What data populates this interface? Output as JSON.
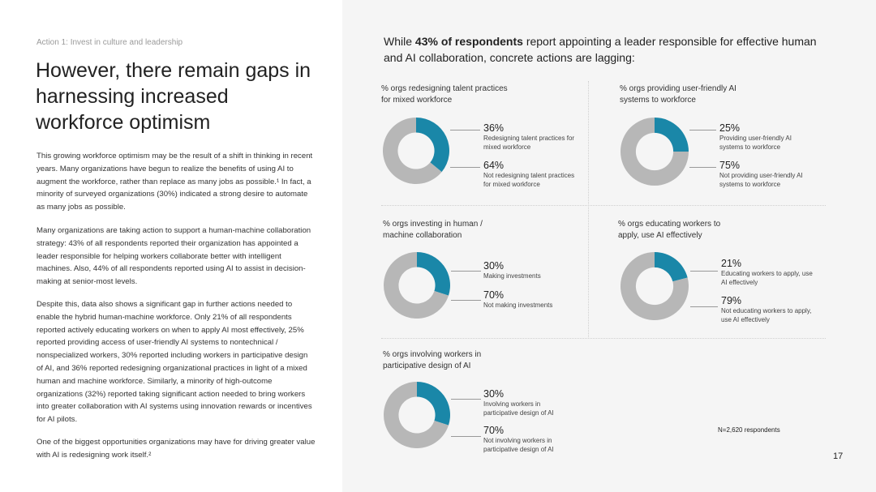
{
  "left": {
    "eyebrow": "Action 1: Invest in culture and leadership",
    "title": "However, there remain gaps in harnessing increased workforce optimism",
    "paragraphs": [
      "This growing workforce optimism may be the result of a shift in thinking in recent years. Many organizations have begun to realize the benefits of using AI to augment the workforce, rather than replace as many jobs as possible.¹ In fact, a minority of surveyed organizations (30%) indicated a strong desire to automate as many jobs as possible.",
      "Many organizations are taking action to support a human-machine collaboration strategy: 43% of all respondents reported their organization has appointed a leader responsible for helping workers collaborate better with intelligent machines. Also, 44% of all respondents reported using AI to assist in decision-making at senior-most levels.",
      "Despite this, data also shows a significant gap in further actions needed to enable the hybrid human-machine workforce. Only 21% of all respondents reported actively educating workers on when to apply AI most effectively, 25% reported providing access of user-friendly AI systems to nontechnical / nonspecialized workers, 30% reported including workers in participative design of AI, and 36% reported redesigning organizational practices in light of a mixed human and machine workforce. Similarly, a minority of high-outcome organizations (32%) reported taking significant action needed to bring workers into greater collaboration with AI systems using innovation rewards or incentives for AI pilots.",
      "One of the biggest opportunities organizations may have for driving greater value with AI is redesigning work itself.²"
    ]
  },
  "right": {
    "intro_pre": "While ",
    "intro_bold": "43% of respondents",
    "intro_post": " report appointing a leader responsible for effective human and AI collaboration, concrete actions are lagging:",
    "note": "N=2,620 respondents",
    "page_number": "17"
  },
  "colors": {
    "accent": "#1a87a8",
    "rest": "#b7b7b7"
  },
  "chart_data": [
    {
      "type": "pie",
      "title": "% orgs redesigning talent practices for mixed workforce",
      "slices": [
        {
          "label": "Redesigning talent practices for mixed workforce",
          "value": 36,
          "display": "36%"
        },
        {
          "label": "Not redesigning talent practices for mixed workforce",
          "value": 64,
          "display": "64%"
        }
      ]
    },
    {
      "type": "pie",
      "title": "% orgs providing user-friendly AI systems to workforce",
      "slices": [
        {
          "label": "Providing user-friendly AI systems to workforce",
          "value": 25,
          "display": "25%"
        },
        {
          "label": "Not providing user-friendly AI systems to workforce",
          "value": 75,
          "display": "75%"
        }
      ]
    },
    {
      "type": "pie",
      "title": "% orgs investing in human / machine collaboration",
      "slices": [
        {
          "label": "Making investments",
          "value": 30,
          "display": "30%"
        },
        {
          "label": "Not making investments",
          "value": 70,
          "display": "70%"
        }
      ]
    },
    {
      "type": "pie",
      "title": "% orgs educating workers to apply, use AI effectively",
      "slices": [
        {
          "label": "Educating workers to apply, use AI effectively",
          "value": 21,
          "display": "21%"
        },
        {
          "label": "Not educating workers to apply, use AI effectively",
          "value": 79,
          "display": "79%"
        }
      ]
    },
    {
      "type": "pie",
      "title": "% orgs involving workers in participative design of AI",
      "slices": [
        {
          "label": "Involving workers in participative design of AI",
          "value": 30,
          "display": "30%"
        },
        {
          "label": "Not involving workers in participative design of AI",
          "value": 70,
          "display": "70%"
        }
      ]
    }
  ]
}
